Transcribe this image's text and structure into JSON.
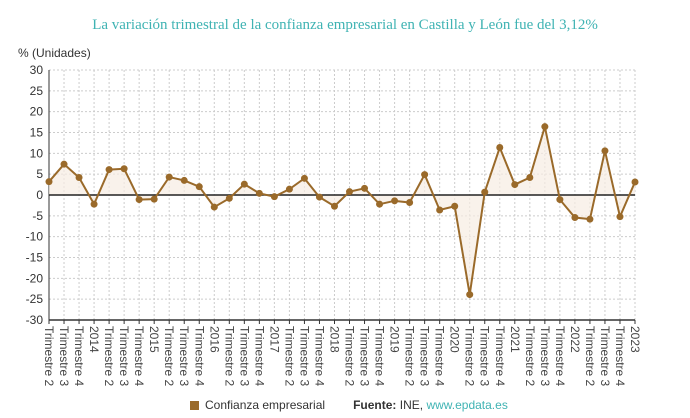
{
  "title": "La variación trimestral de la confianza empresarial en Castilla y León fue del 3,12%",
  "legend": {
    "series_label": "Confianza empresarial",
    "source_label": "Fuente:",
    "source_text": "INE,",
    "source_link": "www.epdata.es"
  },
  "colors": {
    "series": "#9a6a2a",
    "title": "#3fb3b3",
    "fill": "#f7ede2"
  },
  "chart_data": {
    "type": "area",
    "title": "La variación trimestral de la confianza empresarial en Castilla y León fue del 3,12%",
    "ylabel": "% (Unidades)",
    "ylim": [
      -30,
      30
    ],
    "yticks": [
      30,
      25,
      20,
      15,
      10,
      5,
      0,
      -5,
      -10,
      -15,
      -20,
      -25,
      -30
    ],
    "grid": true,
    "legend_position": "bottom",
    "categories": [
      "Trimestre 2",
      "Trimestre 3",
      "Trimestre 4",
      "2014",
      "Trimestre 2",
      "Trimestre 3",
      "Trimestre 4",
      "2015",
      "Trimestre 2",
      "Trimestre 3",
      "Trimestre 4",
      "2016",
      "Trimestre 2",
      "Trimestre 3",
      "Trimestre 4",
      "2017",
      "Trimestre 2",
      "Trimestre 3",
      "Trimestre 4",
      "2018",
      "Trimestre 2",
      "Trimestre 3",
      "Trimestre 4",
      "2019",
      "Trimestre 2",
      "Trimestre 3",
      "Trimestre 4",
      "2020",
      "Trimestre 2",
      "Trimestre 3",
      "Trimestre 4",
      "2021",
      "Trimestre 2",
      "Trimestre 3",
      "Trimestre 4",
      "2022",
      "Trimestre 2",
      "Trimestre 3",
      "Trimestre 4",
      "2023"
    ],
    "series": [
      {
        "name": "Confianza empresarial",
        "values": [
          3.2,
          7.4,
          4.2,
          -2.2,
          6.1,
          6.3,
          -1.1,
          -1.0,
          4.3,
          3.5,
          2.0,
          -2.9,
          -0.8,
          2.6,
          0.4,
          -0.4,
          1.4,
          4.0,
          -0.5,
          -2.7,
          0.8,
          1.6,
          -2.2,
          -1.4,
          -1.8,
          4.9,
          -3.6,
          -2.7,
          -23.9,
          0.7,
          11.4,
          2.5,
          4.2,
          16.4,
          -1.1,
          -5.4,
          -5.8,
          10.6,
          -5.2,
          3.12
        ]
      }
    ]
  }
}
